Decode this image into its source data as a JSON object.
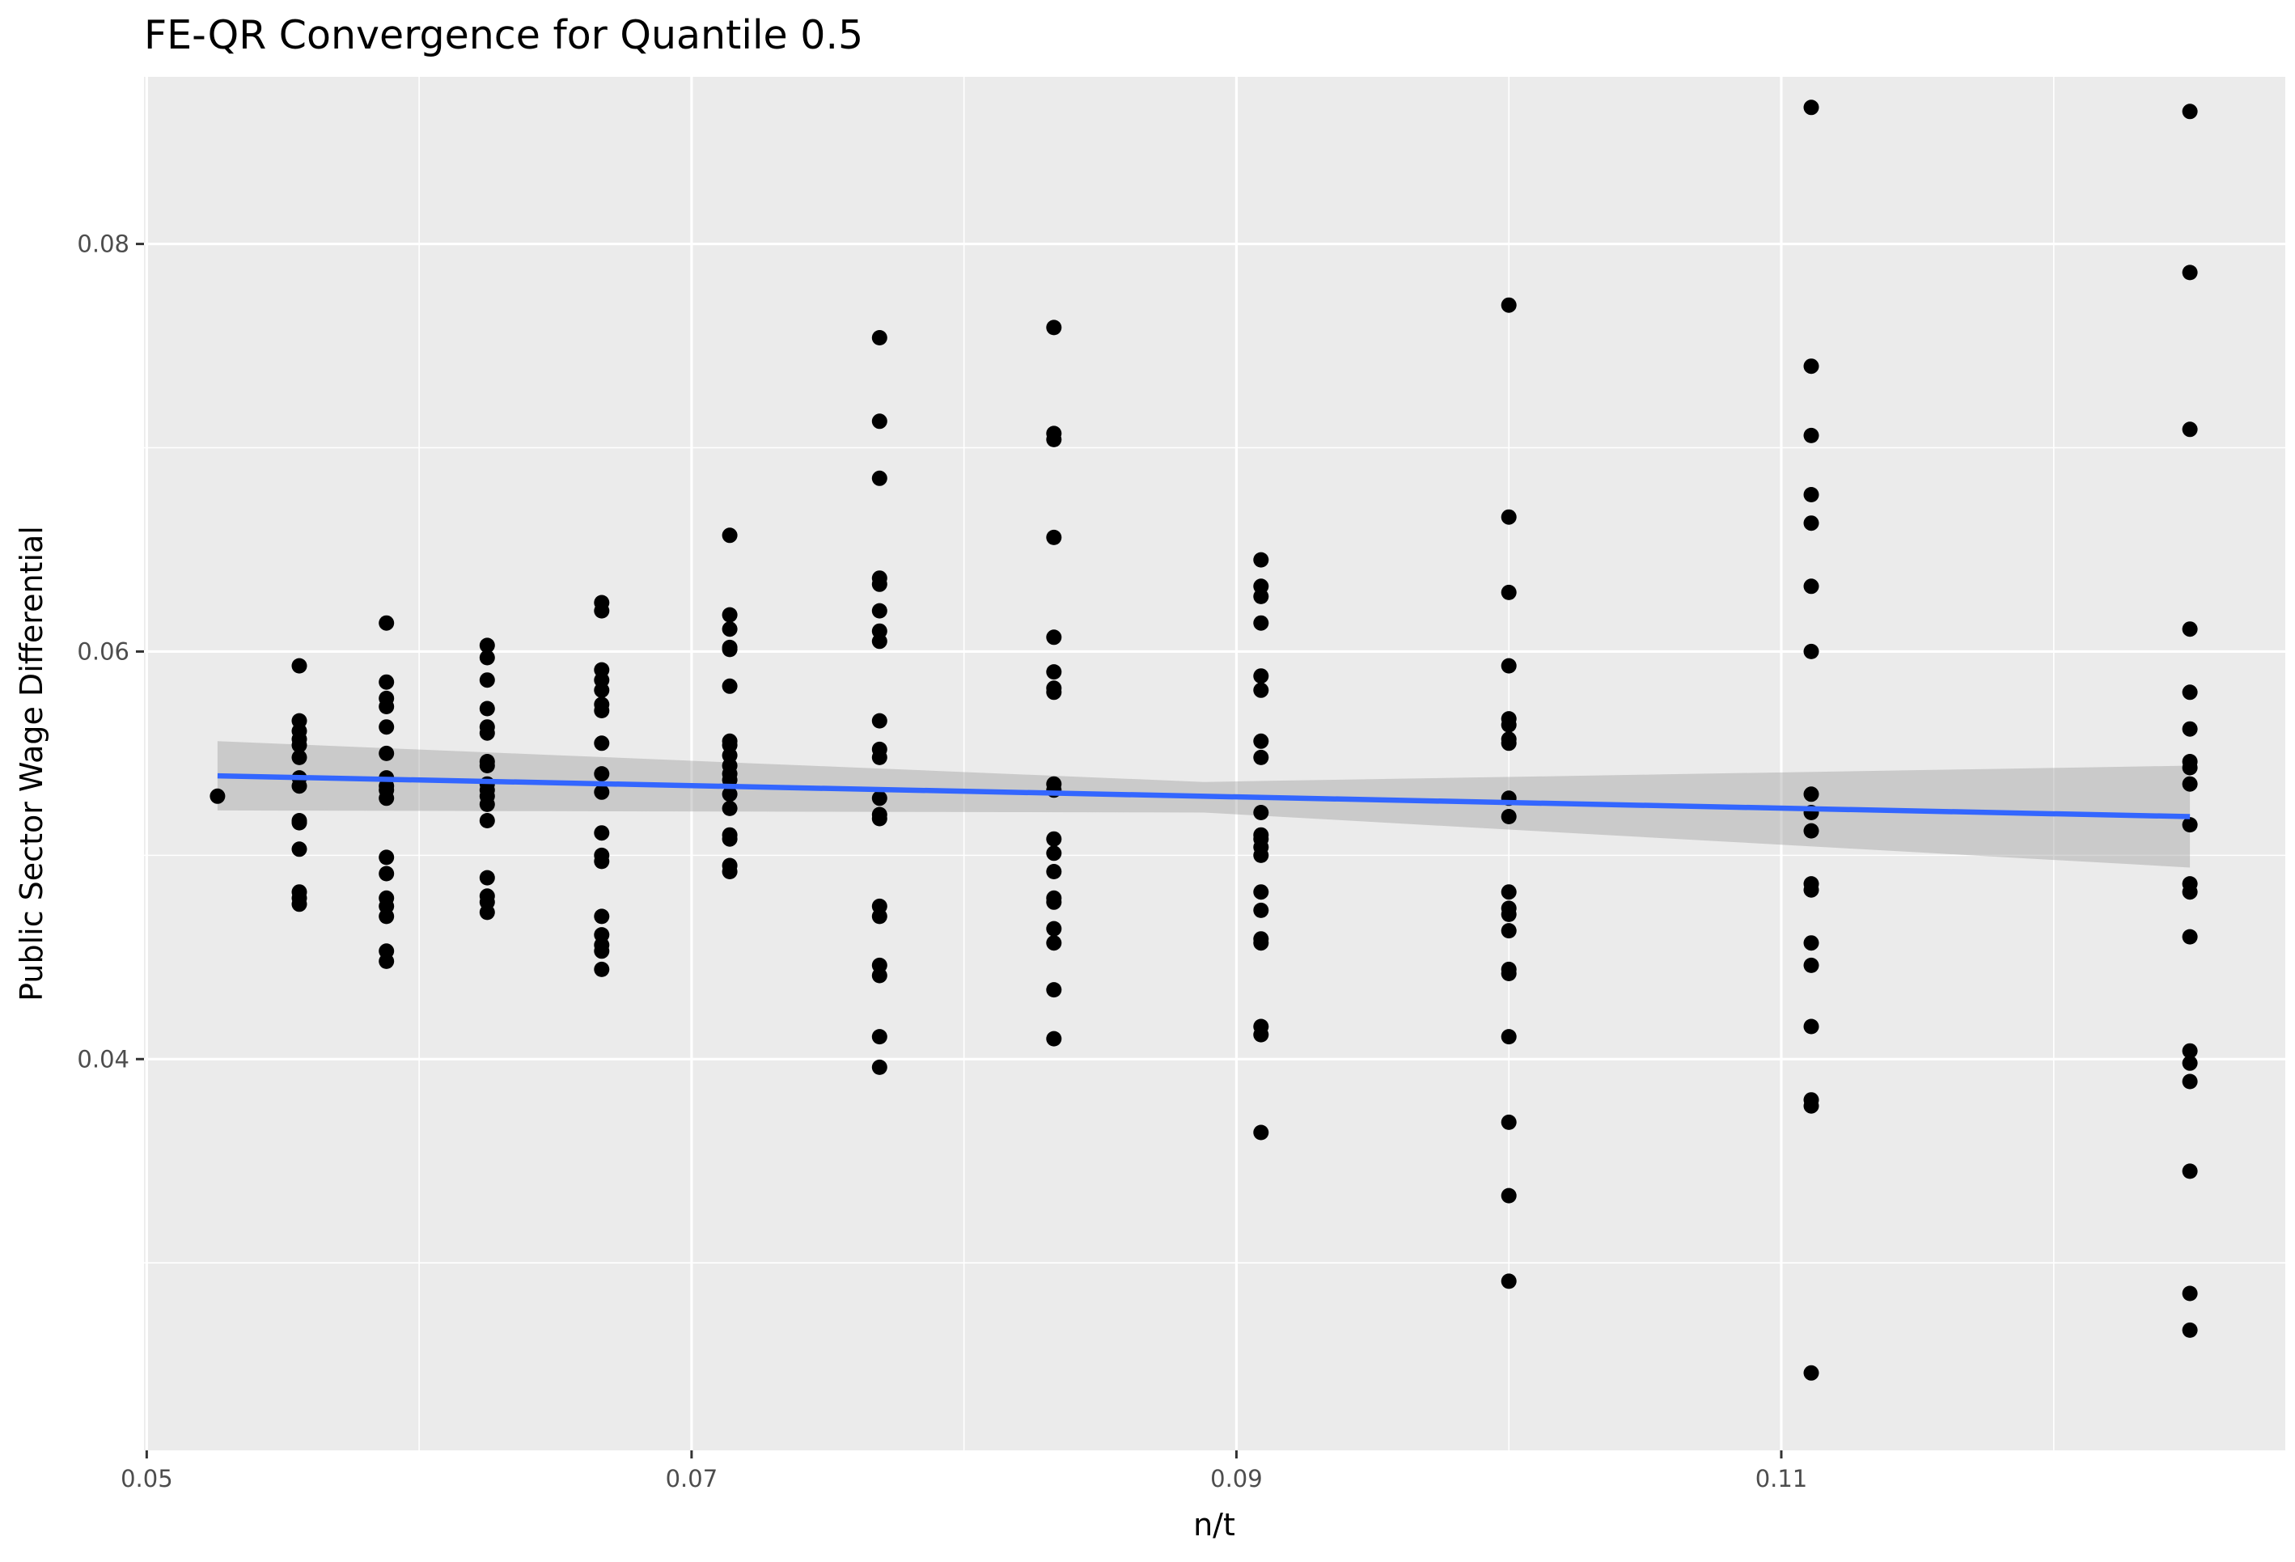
{
  "chart_data": {
    "type": "scatter",
    "title": "FE-QR Convergence for Quantile 0.5",
    "xlabel": "n/t",
    "ylabel": "Public Sector Wage Differential",
    "xlim": [
      0.0499,
      0.1285
    ],
    "ylim": [
      0.0208,
      0.0882
    ],
    "x_ticks": [
      0.05,
      0.07,
      0.09,
      0.11
    ],
    "x_tick_labels": [
      "0.05",
      "0.07",
      "0.09",
      "0.11"
    ],
    "y_ticks": [
      0.04,
      0.06,
      0.08
    ],
    "y_tick_labels": [
      "0.04",
      "0.06",
      "0.08"
    ],
    "grid": true,
    "legend": "none",
    "colors": {
      "panel": "#ebebeb",
      "grid": "#ffffff",
      "points": "#000000",
      "smooth_line": "#3366ff",
      "confidence_band": "#999999"
    },
    "series": [
      {
        "type": "points",
        "points": [
          [
            0.0526,
            0.0529
          ],
          [
            0.0556,
            0.0593
          ],
          [
            0.0556,
            0.0566
          ],
          [
            0.0556,
            0.0561
          ],
          [
            0.0556,
            0.0557
          ],
          [
            0.0556,
            0.0554
          ],
          [
            0.0556,
            0.0548
          ],
          [
            0.0556,
            0.0538
          ],
          [
            0.0556,
            0.0534
          ],
          [
            0.0556,
            0.0517
          ],
          [
            0.0556,
            0.0516
          ],
          [
            0.0556,
            0.0503
          ],
          [
            0.0556,
            0.0482
          ],
          [
            0.0556,
            0.0479
          ],
          [
            0.0556,
            0.0476
          ],
          [
            0.0588,
            0.0614
          ],
          [
            0.0588,
            0.0585
          ],
          [
            0.0588,
            0.0577
          ],
          [
            0.0588,
            0.0573
          ],
          [
            0.0588,
            0.0563
          ],
          [
            0.0588,
            0.055
          ],
          [
            0.0588,
            0.0538
          ],
          [
            0.0588,
            0.0534
          ],
          [
            0.0588,
            0.0532
          ],
          [
            0.0588,
            0.0528
          ],
          [
            0.0588,
            0.0499
          ],
          [
            0.0588,
            0.0491
          ],
          [
            0.0588,
            0.0479
          ],
          [
            0.0588,
            0.0475
          ],
          [
            0.0588,
            0.047
          ],
          [
            0.0588,
            0.0453
          ],
          [
            0.0588,
            0.0448
          ],
          [
            0.0625,
            0.0603
          ],
          [
            0.0625,
            0.0597
          ],
          [
            0.0625,
            0.0586
          ],
          [
            0.0625,
            0.0572
          ],
          [
            0.0625,
            0.0563
          ],
          [
            0.0625,
            0.056
          ],
          [
            0.0625,
            0.0546
          ],
          [
            0.0625,
            0.0544
          ],
          [
            0.0625,
            0.0535
          ],
          [
            0.0625,
            0.0532
          ],
          [
            0.0625,
            0.0529
          ],
          [
            0.0625,
            0.0525
          ],
          [
            0.0625,
            0.0517
          ],
          [
            0.0625,
            0.0489
          ],
          [
            0.0625,
            0.048
          ],
          [
            0.0625,
            0.0477
          ],
          [
            0.0625,
            0.0472
          ],
          [
            0.0667,
            0.0624
          ],
          [
            0.0667,
            0.062
          ],
          [
            0.0667,
            0.0591
          ],
          [
            0.0667,
            0.0586
          ],
          [
            0.0667,
            0.0581
          ],
          [
            0.0667,
            0.0574
          ],
          [
            0.0667,
            0.0571
          ],
          [
            0.0667,
            0.0555
          ],
          [
            0.0667,
            0.054
          ],
          [
            0.0667,
            0.0531
          ],
          [
            0.0667,
            0.0511
          ],
          [
            0.0667,
            0.05
          ],
          [
            0.0667,
            0.0497
          ],
          [
            0.0667,
            0.047
          ],
          [
            0.0667,
            0.0461
          ],
          [
            0.0667,
            0.0456
          ],
          [
            0.0667,
            0.0453
          ],
          [
            0.0667,
            0.0444
          ],
          [
            0.0714,
            0.0657
          ],
          [
            0.0714,
            0.0618
          ],
          [
            0.0714,
            0.0611
          ],
          [
            0.0714,
            0.0602
          ],
          [
            0.0714,
            0.0601
          ],
          [
            0.0714,
            0.0583
          ],
          [
            0.0714,
            0.0556
          ],
          [
            0.0714,
            0.0554
          ],
          [
            0.0714,
            0.0549
          ],
          [
            0.0714,
            0.0544
          ],
          [
            0.0714,
            0.054
          ],
          [
            0.0714,
            0.0537
          ],
          [
            0.0714,
            0.053
          ],
          [
            0.0714,
            0.0523
          ],
          [
            0.0714,
            0.051
          ],
          [
            0.0714,
            0.0508
          ],
          [
            0.0714,
            0.0495
          ],
          [
            0.0714,
            0.0492
          ],
          [
            0.0769,
            0.0754
          ],
          [
            0.0769,
            0.0713
          ],
          [
            0.0769,
            0.0685
          ],
          [
            0.0769,
            0.0636
          ],
          [
            0.0769,
            0.0633
          ],
          [
            0.0769,
            0.062
          ],
          [
            0.0769,
            0.061
          ],
          [
            0.0769,
            0.0605
          ],
          [
            0.0769,
            0.0566
          ],
          [
            0.0769,
            0.0552
          ],
          [
            0.0769,
            0.0548
          ],
          [
            0.0769,
            0.0528
          ],
          [
            0.0769,
            0.052
          ],
          [
            0.0769,
            0.0518
          ],
          [
            0.0769,
            0.0475
          ],
          [
            0.0769,
            0.047
          ],
          [
            0.0769,
            0.0446
          ],
          [
            0.0769,
            0.0441
          ],
          [
            0.0769,
            0.0411
          ],
          [
            0.0769,
            0.0396
          ],
          [
            0.0833,
            0.0759
          ],
          [
            0.0833,
            0.0707
          ],
          [
            0.0833,
            0.0704
          ],
          [
            0.0833,
            0.0656
          ],
          [
            0.0833,
            0.0607
          ],
          [
            0.0833,
            0.059
          ],
          [
            0.0833,
            0.0582
          ],
          [
            0.0833,
            0.058
          ],
          [
            0.0833,
            0.0535
          ],
          [
            0.0833,
            0.0532
          ],
          [
            0.0833,
            0.0508
          ],
          [
            0.0833,
            0.0501
          ],
          [
            0.0833,
            0.0492
          ],
          [
            0.0833,
            0.0479
          ],
          [
            0.0833,
            0.0477
          ],
          [
            0.0833,
            0.0464
          ],
          [
            0.0833,
            0.0457
          ],
          [
            0.0833,
            0.0434
          ],
          [
            0.0833,
            0.041
          ],
          [
            0.0909,
            0.0645
          ],
          [
            0.0909,
            0.0632
          ],
          [
            0.0909,
            0.0627
          ],
          [
            0.0909,
            0.0614
          ],
          [
            0.0909,
            0.0588
          ],
          [
            0.0909,
            0.0581
          ],
          [
            0.0909,
            0.0556
          ],
          [
            0.0909,
            0.0548
          ],
          [
            0.0909,
            0.0521
          ],
          [
            0.0909,
            0.051
          ],
          [
            0.0909,
            0.0508
          ],
          [
            0.0909,
            0.0504
          ],
          [
            0.0909,
            0.05
          ],
          [
            0.0909,
            0.0482
          ],
          [
            0.0909,
            0.0473
          ],
          [
            0.0909,
            0.0459
          ],
          [
            0.0909,
            0.0457
          ],
          [
            0.0909,
            0.0416
          ],
          [
            0.0909,
            0.0412
          ],
          [
            0.0909,
            0.0364
          ],
          [
            0.1,
            0.077
          ],
          [
            0.1,
            0.0666
          ],
          [
            0.1,
            0.0629
          ],
          [
            0.1,
            0.0593
          ],
          [
            0.1,
            0.0567
          ],
          [
            0.1,
            0.0564
          ],
          [
            0.1,
            0.0557
          ],
          [
            0.1,
            0.0555
          ],
          [
            0.1,
            0.0528
          ],
          [
            0.1,
            0.0519
          ],
          [
            0.1,
            0.0482
          ],
          [
            0.1,
            0.0474
          ],
          [
            0.1,
            0.0471
          ],
          [
            0.1,
            0.0463
          ],
          [
            0.1,
            0.0444
          ],
          [
            0.1,
            0.0442
          ],
          [
            0.1,
            0.0411
          ],
          [
            0.1,
            0.0369
          ],
          [
            0.1,
            0.0333
          ],
          [
            0.1,
            0.0291
          ],
          [
            0.1111,
            0.0867
          ],
          [
            0.1111,
            0.074
          ],
          [
            0.1111,
            0.0706
          ],
          [
            0.1111,
            0.0677
          ],
          [
            0.1111,
            0.0663
          ],
          [
            0.1111,
            0.0632
          ],
          [
            0.1111,
            0.06
          ],
          [
            0.1111,
            0.053
          ],
          [
            0.1111,
            0.0521
          ],
          [
            0.1111,
            0.0512
          ],
          [
            0.1111,
            0.0486
          ],
          [
            0.1111,
            0.0483
          ],
          [
            0.1111,
            0.0457
          ],
          [
            0.1111,
            0.0446
          ],
          [
            0.1111,
            0.0416
          ],
          [
            0.1111,
            0.038
          ],
          [
            0.1111,
            0.0377
          ],
          [
            0.1111,
            0.0246
          ],
          [
            0.125,
            0.0865
          ],
          [
            0.125,
            0.0786
          ],
          [
            0.125,
            0.0709
          ],
          [
            0.125,
            0.0611
          ],
          [
            0.125,
            0.058
          ],
          [
            0.125,
            0.0562
          ],
          [
            0.125,
            0.0546
          ],
          [
            0.125,
            0.0543
          ],
          [
            0.125,
            0.0535
          ],
          [
            0.125,
            0.0515
          ],
          [
            0.125,
            0.0486
          ],
          [
            0.125,
            0.0482
          ],
          [
            0.125,
            0.046
          ],
          [
            0.125,
            0.0404
          ],
          [
            0.125,
            0.0398
          ],
          [
            0.125,
            0.0389
          ],
          [
            0.125,
            0.0345
          ],
          [
            0.125,
            0.0285
          ],
          [
            0.125,
            0.0267
          ]
        ]
      },
      {
        "type": "smooth",
        "method": "linear",
        "x": [
          0.0526,
          0.125
        ],
        "y": [
          0.0539,
          0.0519
        ],
        "band_lower": [
          0.0522,
          0.0494
        ],
        "band_upper": [
          0.0556,
          0.0544
        ],
        "band_mid": {
          "x": 0.0888,
          "lower": 0.0521,
          "upper": 0.0536
        }
      }
    ]
  }
}
